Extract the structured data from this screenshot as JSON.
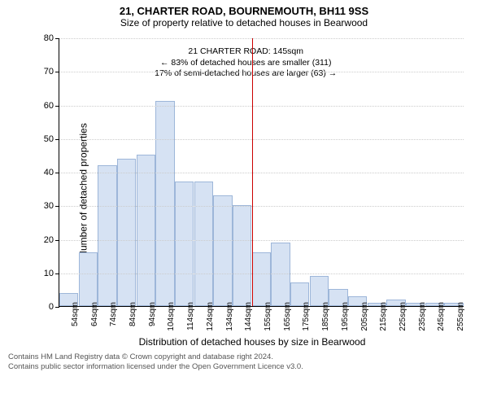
{
  "title": "21, CHARTER ROAD, BOURNEMOUTH, BH11 9SS",
  "subtitle": "Size of property relative to detached houses in Bearwood",
  "annotation": {
    "line1": "21 CHARTER ROAD: 145sqm",
    "line2": "← 83% of detached houses are smaller (311)",
    "line3": "17% of semi-detached houses are larger (63) →"
  },
  "chart": {
    "type": "histogram",
    "xlabel": "Distribution of detached houses by size in Bearwood",
    "ylabel": "Number of detached properties",
    "ylim": [
      0,
      80
    ],
    "ytick_step": 10,
    "xticks": [
      "54sqm",
      "64sqm",
      "74sqm",
      "84sqm",
      "94sqm",
      "104sqm",
      "114sqm",
      "124sqm",
      "134sqm",
      "144sqm",
      "155sqm",
      "165sqm",
      "175sqm",
      "185sqm",
      "195sqm",
      "205sqm",
      "215sqm",
      "225sqm",
      "235sqm",
      "245sqm",
      "255sqm"
    ],
    "values": [
      4,
      16,
      42,
      44,
      45,
      61,
      37,
      37,
      33,
      30,
      16,
      19,
      7,
      9,
      5,
      3,
      1,
      2,
      1,
      1,
      1
    ],
    "bar_fill": "#d6e2f3",
    "bar_stroke": "#9db6d9",
    "bar_width": 0.98,
    "grid_color": "#cccccc",
    "axis_color": "#000000",
    "marker_x_index": 9,
    "marker_color": "#cc0000",
    "background": "#ffffff",
    "title_fontsize": 13,
    "label_fontsize": 12,
    "tick_fontsize": 11
  },
  "footer": {
    "line1": "Contains HM Land Registry data © Crown copyright and database right 2024.",
    "line2": "Contains public sector information licensed under the Open Government Licence v3.0."
  }
}
